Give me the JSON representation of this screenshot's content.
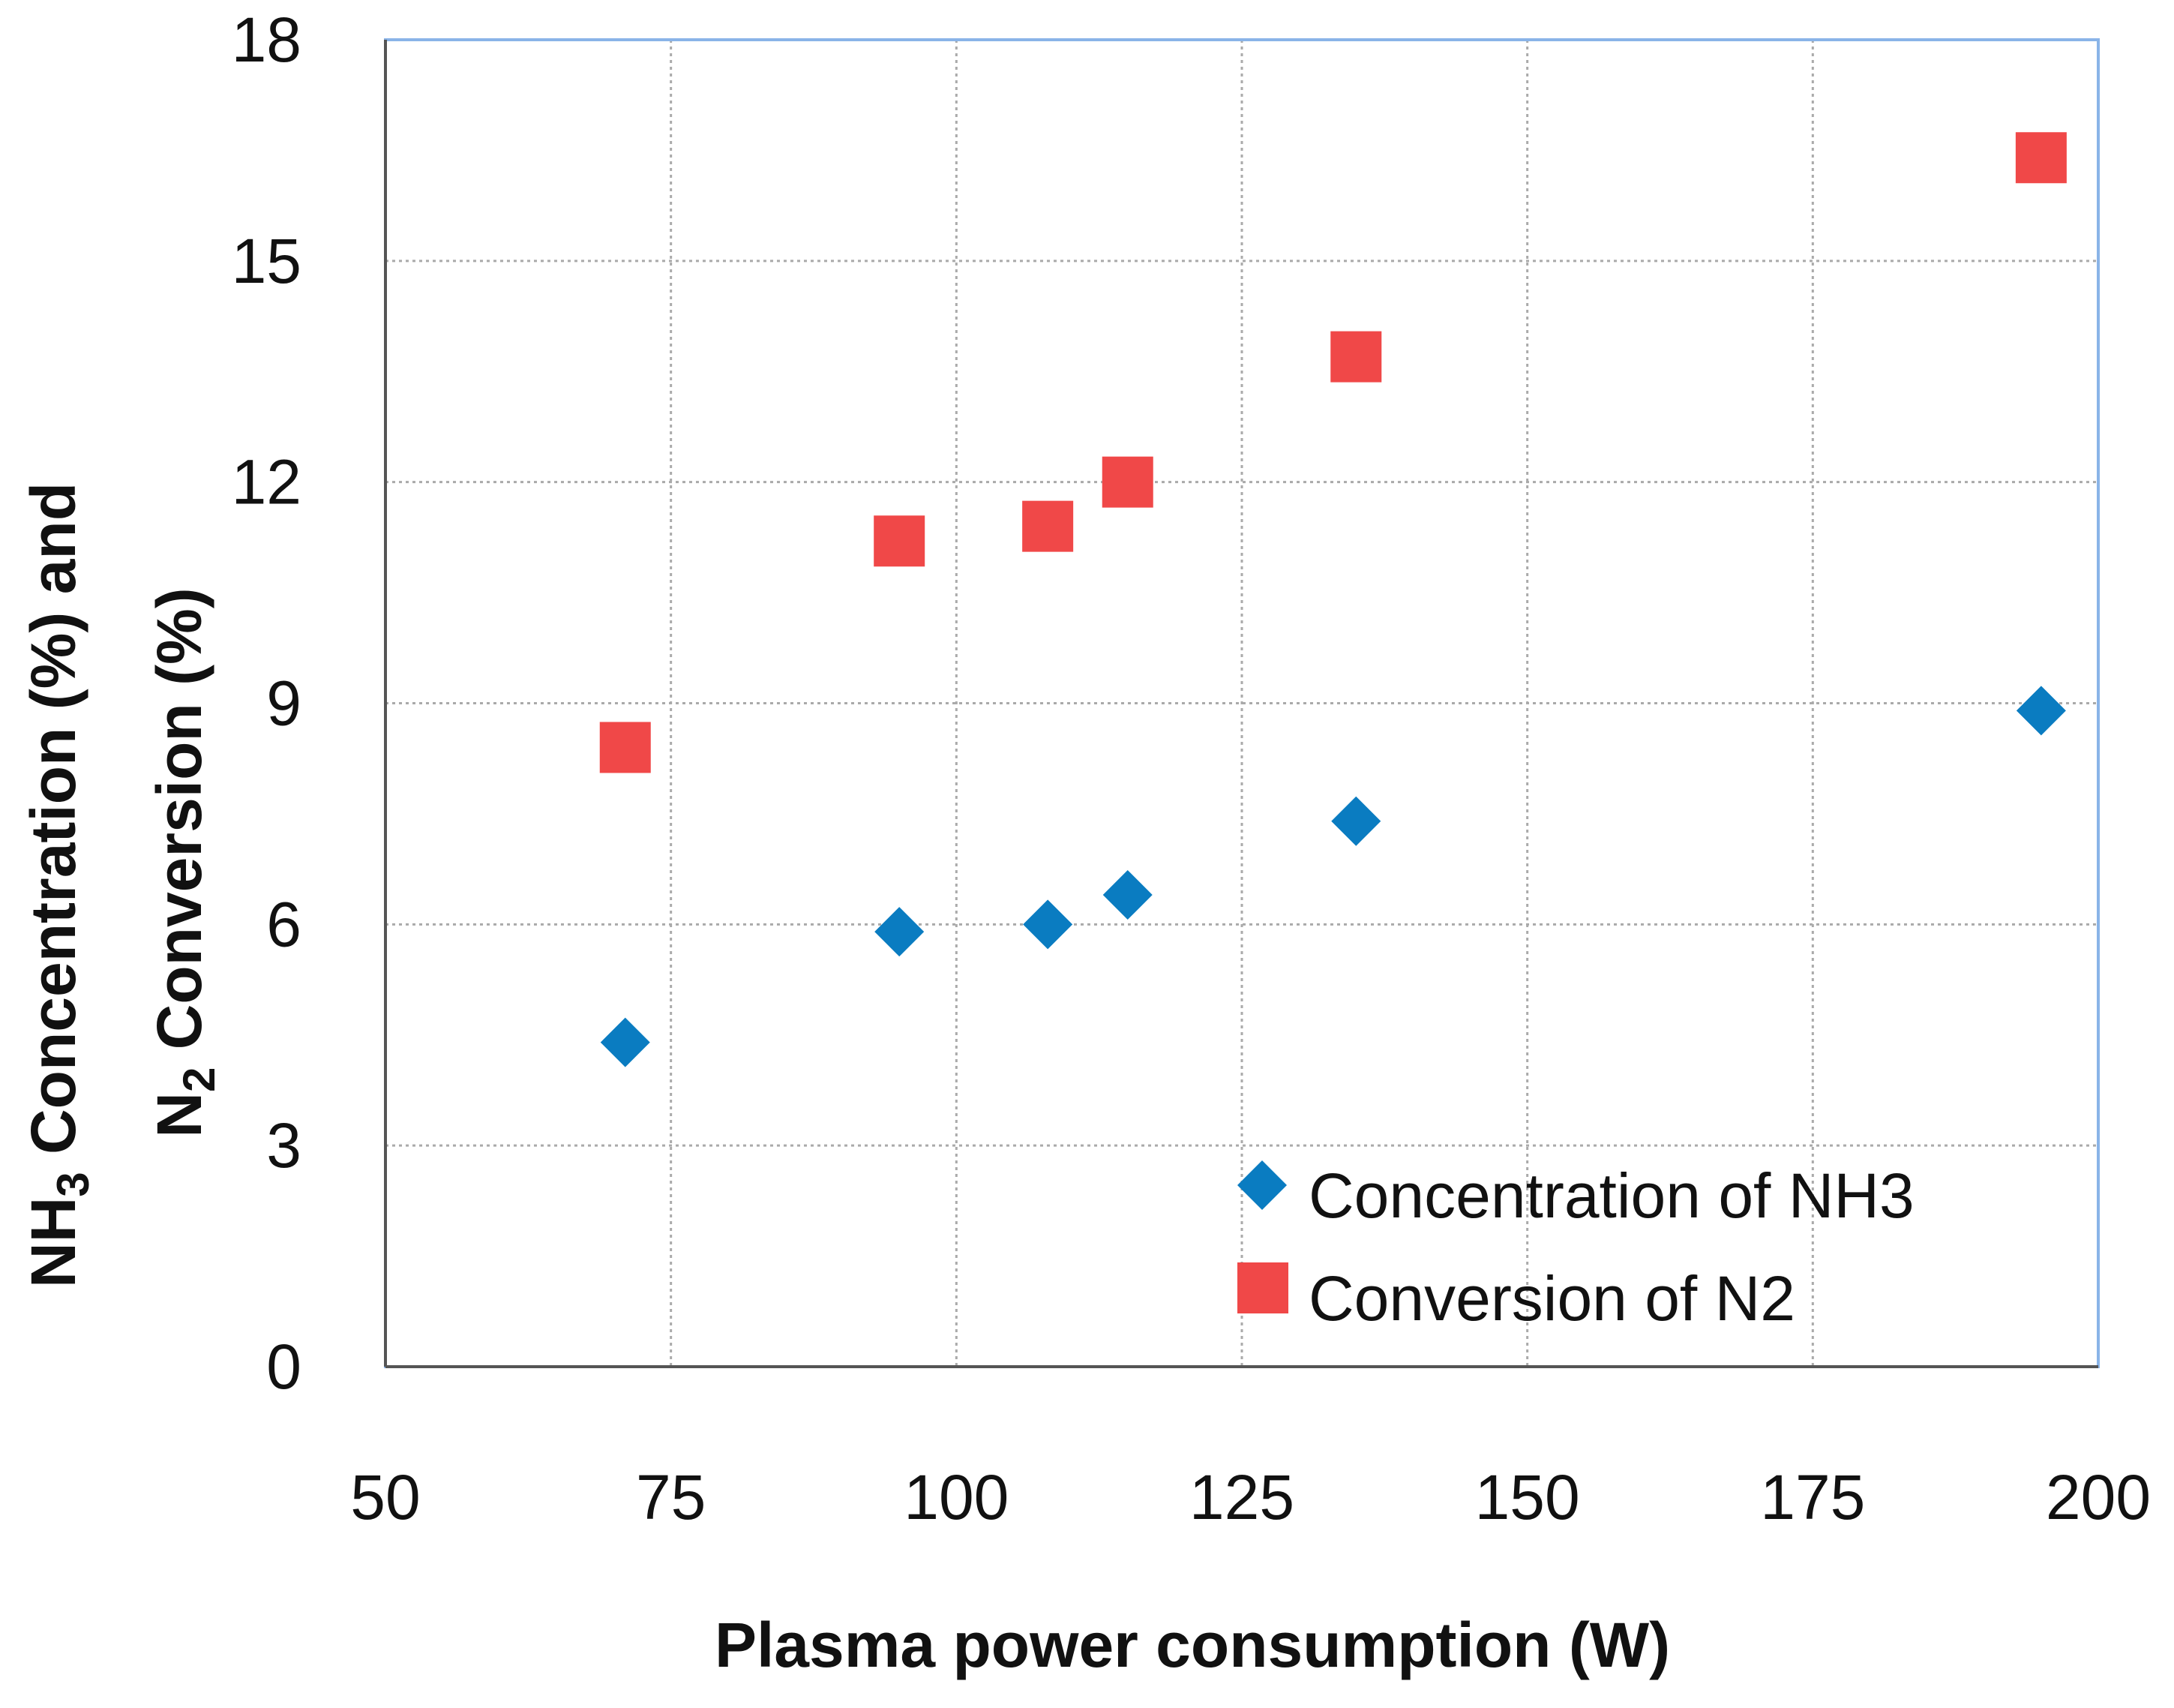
{
  "chart_data": {
    "type": "scatter",
    "xlabel": "Plasma  power consumption (W)",
    "ylabel_lines": [
      {
        "parts": [
          "NH",
          "3",
          " Concentration (%) and"
        ]
      },
      {
        "parts": [
          "N",
          "2",
          " Conversion (%)"
        ]
      }
    ],
    "xlim": [
      50,
      200
    ],
    "ylim": [
      0,
      18
    ],
    "xticks": [
      "50",
      "75",
      "100",
      "125",
      "150",
      "175",
      "200"
    ],
    "yticks": [
      "0",
      "3",
      "6",
      "9",
      "12",
      "15",
      "18"
    ],
    "grid": true,
    "legend_position": "bottom-right",
    "x": [
      71,
      95,
      108,
      115,
      135,
      195
    ],
    "series": [
      {
        "name": "Concentration of NH3",
        "marker": "diamond",
        "color": "#0a7cc1",
        "values": [
          4.4,
          5.9,
          6.0,
          6.4,
          7.4,
          8.9
        ]
      },
      {
        "name": "Conversion of N2",
        "marker": "square",
        "color": "#f04848",
        "values": [
          8.4,
          11.2,
          11.4,
          12.0,
          13.7,
          16.4
        ]
      }
    ]
  }
}
